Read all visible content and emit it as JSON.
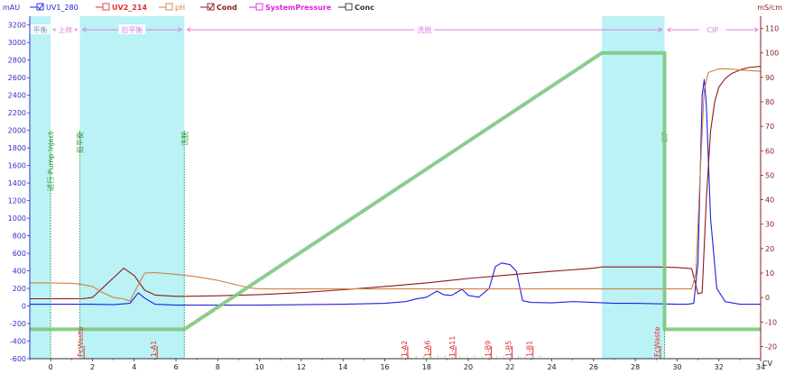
{
  "chart_data": {
    "type": "line",
    "x_unit": "CV",
    "xlim": [
      -1,
      34
    ],
    "x_ticks": [
      0,
      2,
      4,
      6,
      8,
      10,
      12,
      14,
      16,
      18,
      20,
      22,
      24,
      26,
      28,
      30,
      32,
      34
    ],
    "y_left": {
      "unit": "mAU",
      "ylim": [
        -600,
        3300
      ],
      "ticks": [
        -600,
        -400,
        -200,
        0,
        200,
        400,
        600,
        800,
        1000,
        1200,
        1400,
        1600,
        1800,
        2000,
        2200,
        2400,
        2600,
        2800,
        3000,
        3200
      ]
    },
    "y_right": {
      "unit": "mS/cm",
      "ylim": [
        -25,
        115
      ],
      "ticks": [
        -20,
        -10,
        0,
        10,
        20,
        30,
        40,
        50,
        60,
        70,
        80,
        90,
        100,
        110
      ]
    },
    "legend": [
      {
        "name": "UV1_280",
        "color": "#2020e0",
        "checked": true
      },
      {
        "name": "UV2_214",
        "color": "#e03030",
        "checked": false
      },
      {
        "name": "pH",
        "color": "#d08040",
        "checked": false
      },
      {
        "name": "Cond",
        "color": "#8b1a1a",
        "checked": true
      },
      {
        "name": "SystemPressure",
        "color": "#e020e0",
        "checked": false
      },
      {
        "name": "Conc",
        "color": "#333333",
        "checked": false
      }
    ],
    "phases": [
      {
        "label": "平衡",
        "x": [
          -1,
          0
        ],
        "color": "#9090c0"
      },
      {
        "label": "上样",
        "x": [
          0,
          1.4
        ],
        "color": "#e080e0"
      },
      {
        "label": "后平衡",
        "x": [
          1.4,
          6.4
        ],
        "color": "#e080e0"
      },
      {
        "label": "洗脱",
        "x": [
          6.4,
          29.4
        ],
        "color": "#e080e0"
      },
      {
        "label": "CIP",
        "x": [
          29.4,
          34
        ],
        "color": "#e080e0"
      }
    ],
    "shaded": [
      [
        -1,
        0
      ],
      [
        1.4,
        6.4
      ],
      [
        26.4,
        29.4
      ]
    ],
    "events": [
      {
        "x": 0,
        "label": "进行 Pump Inject"
      },
      {
        "x": 1.4,
        "label": "后平衡"
      },
      {
        "x": 6.4,
        "label": "洗脱"
      },
      {
        "x": 29.4,
        "label": "CIP"
      }
    ],
    "fractions": [
      {
        "x": 1.6,
        "label": "FcWaste"
      },
      {
        "x": 5.1,
        "label": "1-A1"
      },
      {
        "x": 17.1,
        "label": "1-A2"
      },
      {
        "x": 18.2,
        "label": "1-A6"
      },
      {
        "x": 19.4,
        "label": "1-A11"
      },
      {
        "x": 21.1,
        "label": "1-B9"
      },
      {
        "x": 22.1,
        "label": "1-B5"
      },
      {
        "x": 23.1,
        "label": "1-B1"
      },
      {
        "x": 29.2,
        "label": "FcWaste"
      }
    ],
    "series": [
      {
        "name": "UV1_280",
        "color": "#2020e0",
        "axis": "left",
        "x": [
          -1,
          0,
          1,
          2,
          3,
          3.8,
          4.2,
          4.5,
          5,
          6,
          8,
          10,
          12,
          14,
          16,
          17,
          17.5,
          18,
          18.5,
          18.8,
          19.2,
          19.7,
          20,
          20.5,
          21,
          21.3,
          21.6,
          22,
          22.3,
          22.6,
          23,
          24,
          25,
          26,
          27,
          28,
          29,
          30,
          30.5,
          30.8,
          31,
          31.2,
          31.3,
          31.4,
          31.6,
          31.9,
          32.3,
          33,
          34
        ],
        "y": [
          20,
          20,
          20,
          20,
          15,
          30,
          150,
          90,
          20,
          10,
          10,
          10,
          15,
          20,
          30,
          50,
          80,
          100,
          170,
          130,
          120,
          190,
          120,
          100,
          200,
          450,
          490,
          470,
          400,
          60,
          40,
          35,
          50,
          40,
          30,
          30,
          25,
          20,
          20,
          30,
          500,
          2400,
          2580,
          2300,
          1000,
          200,
          50,
          20,
          20
        ]
      },
      {
        "name": "Cond",
        "color": "#8b1a1a",
        "axis": "right",
        "x": [
          -1,
          0,
          1,
          1.5,
          2,
          2.5,
          3,
          3.5,
          4,
          4.5,
          5,
          6,
          6.4,
          8,
          10,
          12,
          14,
          16,
          18,
          20,
          22,
          24,
          26,
          26.4,
          28,
          29,
          30,
          30.7,
          31,
          31.2,
          31.4,
          31.6,
          31.8,
          32,
          32.3,
          32.6,
          33,
          33.4,
          34
        ],
        "y": [
          -0.5,
          -0.5,
          -0.5,
          -0.5,
          0,
          4,
          8,
          12,
          9,
          3,
          1,
          0.5,
          0.5,
          0.7,
          1.2,
          2,
          3.2,
          4.5,
          6,
          7.8,
          9.3,
          10.7,
          12,
          12.5,
          12.5,
          12.5,
          12.3,
          11.8,
          1.5,
          2,
          40,
          68,
          80,
          86,
          89.5,
          91.5,
          93,
          94,
          94.5
        ]
      },
      {
        "name": "pH",
        "color": "#d08040",
        "axis": "right",
        "x": [
          -1,
          0,
          1,
          1.4,
          2,
          2.5,
          3,
          3.5,
          3.8,
          4,
          4.5,
          5,
          6,
          7,
          8,
          9,
          9.5,
          10,
          12,
          14,
          16,
          18,
          20,
          22,
          24,
          26,
          26.4,
          28,
          30,
          30.7,
          30.9,
          31.1,
          31.3,
          31.5,
          32,
          32.5,
          33,
          34
        ],
        "y": [
          6,
          6,
          5.8,
          5.5,
          4.5,
          2,
          0,
          -0.5,
          -1.5,
          2,
          10,
          10.2,
          9.5,
          8.5,
          7,
          5,
          4,
          3.5,
          3.5,
          3.5,
          3.5,
          3.5,
          3.5,
          3.5,
          3.5,
          3.5,
          3.5,
          3.5,
          3.5,
          3.5,
          10,
          50,
          85,
          92,
          93.5,
          93.5,
          93,
          92.5
        ]
      },
      {
        "name": "Conc",
        "color": "#7ec87e",
        "axis": "right",
        "x": [
          -1,
          6.4,
          26.4,
          29.4,
          29.4,
          34
        ],
        "y": [
          -13,
          -13,
          100,
          100,
          -13,
          -13
        ]
      }
    ]
  }
}
